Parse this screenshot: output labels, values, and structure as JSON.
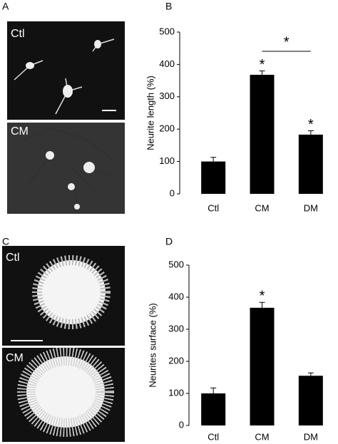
{
  "panel_labels": [
    "A",
    "B",
    "C",
    "D"
  ],
  "image_labels": [
    "Ctl",
    "CM",
    "Ctl",
    "CM"
  ],
  "chart_data": [
    {
      "type": "bar",
      "ylabel": "Neurite length (%)",
      "categories": [
        "Ctl",
        "CM",
        "DM"
      ],
      "values": [
        100,
        368,
        183
      ],
      "errors": [
        13,
        12,
        12
      ],
      "color": "#000000",
      "ylim": [
        0,
        500
      ],
      "yticks": [
        0,
        100,
        200,
        300,
        400,
        500
      ],
      "significance": [
        null,
        "*",
        "*"
      ],
      "bracket": [
        "CM",
        "DM"
      ],
      "bracket_label": "*"
    },
    {
      "type": "bar",
      "ylabel": "Neurites surface (%)",
      "categories": [
        "Ctl",
        "CM",
        "DM"
      ],
      "values": [
        100,
        367,
        155
      ],
      "errors": [
        17,
        17,
        9
      ],
      "color": "#000000",
      "ylim": [
        0,
        500
      ],
      "yticks": [
        0,
        100,
        200,
        300,
        400,
        500
      ],
      "significance": [
        null,
        "*",
        null
      ]
    }
  ]
}
